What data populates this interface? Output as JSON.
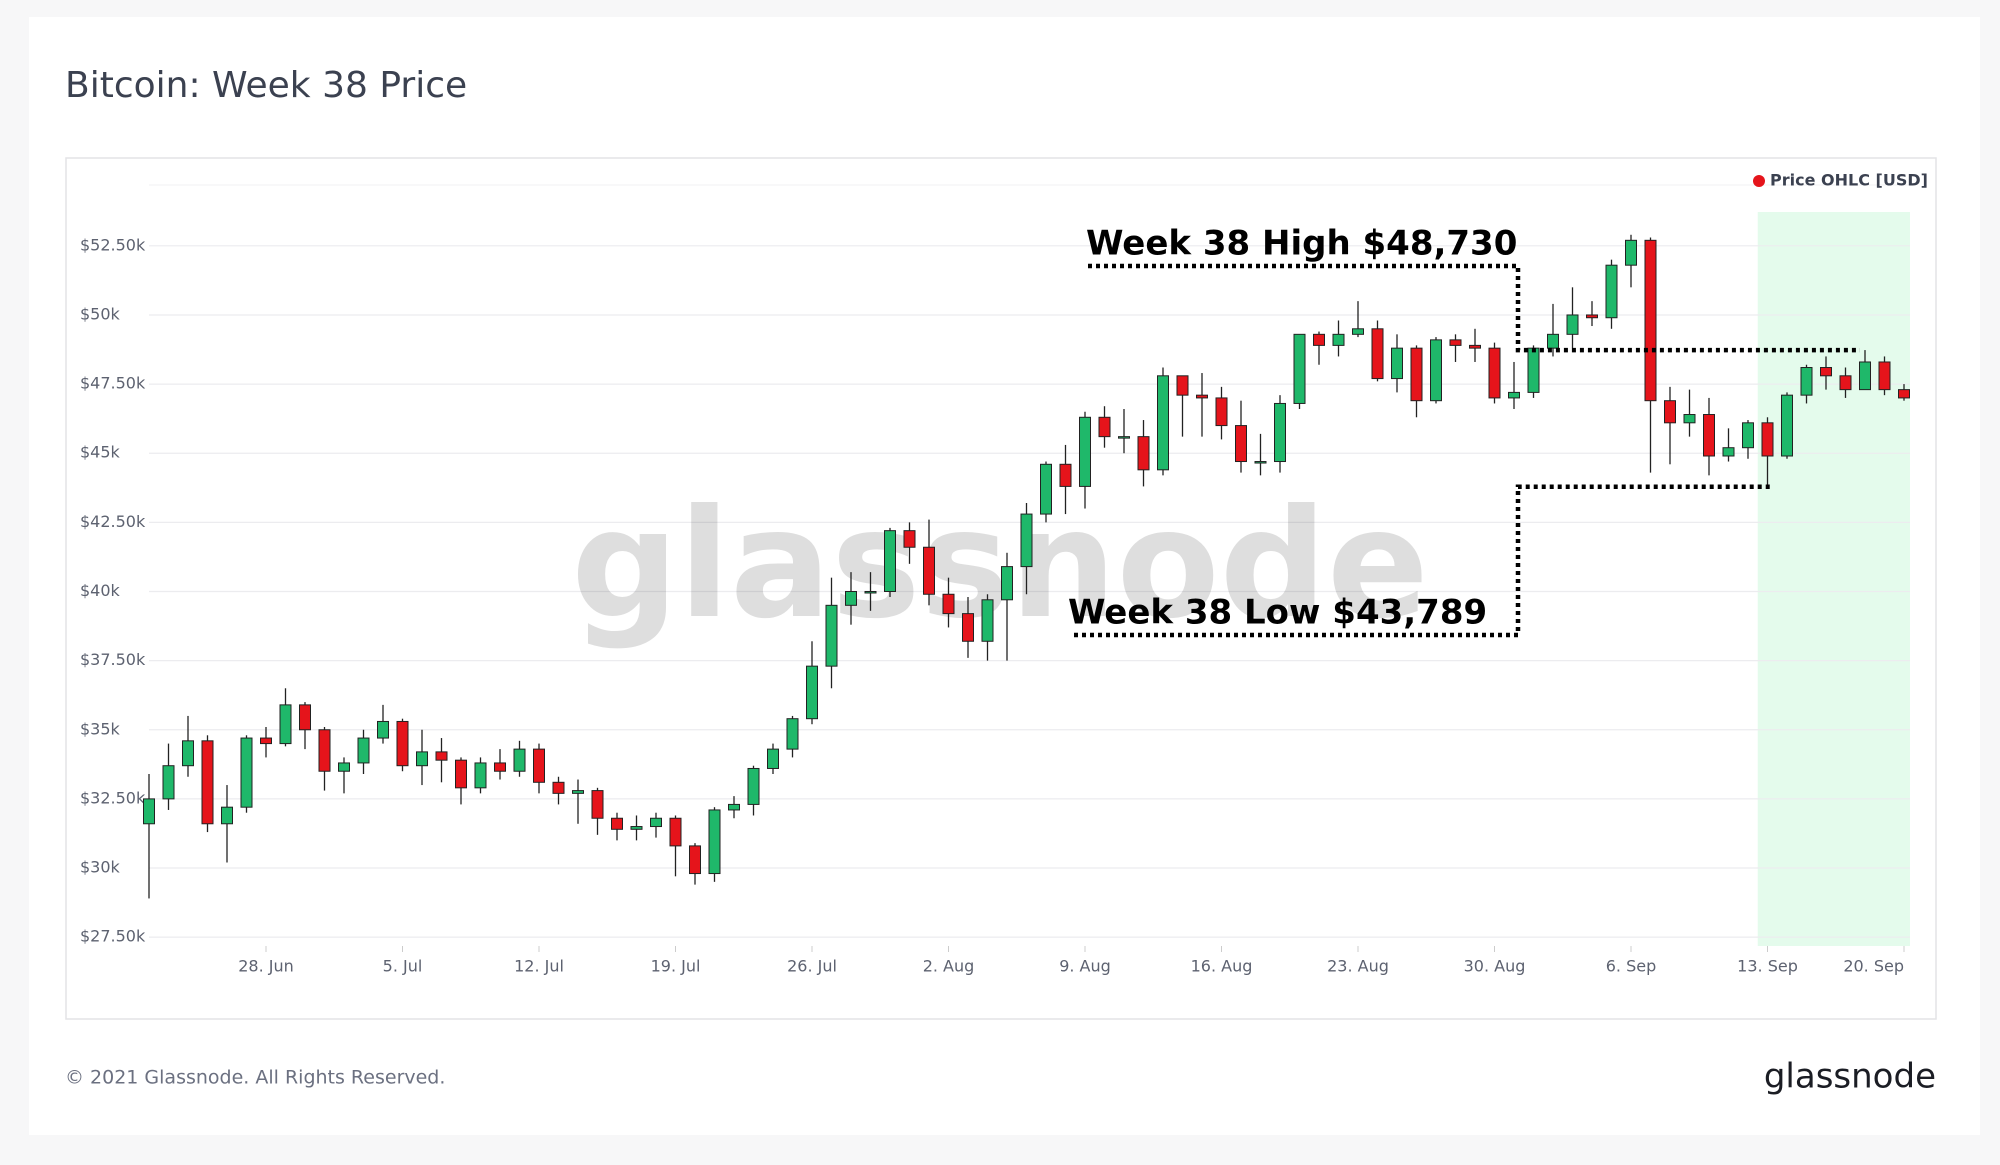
{
  "chart_data": {
    "type": "candlestick",
    "title": "Bitcoin: Week 38 Price",
    "legend": "Price OHLC [USD]",
    "legend_color": "#e5141b",
    "up_color": "#1fb86a",
    "down_color": "#e5141b",
    "watermark": "glassnode",
    "footer": "© 2021 Glassnode. All Rights Reserved.",
    "brand": "glassnode",
    "grid": true,
    "highlight": {
      "from": "09-13",
      "to": "09-20",
      "color": "#e4fbec"
    },
    "annotations": [
      {
        "text": "Week 38 High $48,730",
        "value": 48730
      },
      {
        "text": "Week 38 Low $43,789",
        "value": 43789
      }
    ],
    "x": [
      "06-22",
      "06-23",
      "06-24",
      "06-25",
      "06-26",
      "06-27",
      "06-28",
      "06-29",
      "06-30",
      "07-01",
      "07-02",
      "07-03",
      "07-04",
      "07-05",
      "07-06",
      "07-07",
      "07-08",
      "07-09",
      "07-10",
      "07-11",
      "07-12",
      "07-13",
      "07-14",
      "07-15",
      "07-16",
      "07-17",
      "07-18",
      "07-19",
      "07-20",
      "07-21",
      "07-22",
      "07-23",
      "07-24",
      "07-25",
      "07-26",
      "07-27",
      "07-28",
      "07-29",
      "07-30",
      "07-31",
      "08-01",
      "08-02",
      "08-03",
      "08-04",
      "08-05",
      "08-06",
      "08-07",
      "08-08",
      "08-09",
      "08-10",
      "08-11",
      "08-12",
      "08-13",
      "08-14",
      "08-15",
      "08-16",
      "08-17",
      "08-18",
      "08-19",
      "08-20",
      "08-21",
      "08-22",
      "08-23",
      "08-24",
      "08-25",
      "08-26",
      "08-27",
      "08-28",
      "08-29",
      "08-30",
      "08-31",
      "09-01",
      "09-02",
      "09-03",
      "09-04",
      "09-05",
      "09-06",
      "09-07",
      "09-08",
      "09-09",
      "09-10",
      "09-11",
      "09-12",
      "09-13",
      "09-14",
      "09-15",
      "09-16",
      "09-17",
      "09-18",
      "09-19",
      "09-20"
    ],
    "open": [
      31600,
      32500,
      33700,
      34600,
      31600,
      32200,
      34700,
      34500,
      35900,
      35000,
      33500,
      33800,
      34700,
      35300,
      33700,
      34200,
      33900,
      32900,
      33800,
      33500,
      34300,
      33100,
      32700,
      32800,
      31800,
      31400,
      31500,
      31800,
      30800,
      29800,
      32100,
      32300,
      33600,
      34300,
      35400,
      37300,
      39500,
      40000,
      40000,
      42200,
      41600,
      39900,
      39200,
      38200,
      39700,
      40900,
      42800,
      44600,
      43800,
      46300,
      45600,
      45600,
      44400,
      47800,
      47100,
      47000,
      46000,
      44700,
      44700,
      46800,
      49300,
      48900,
      49300,
      49500,
      47700,
      48800,
      46900,
      49100,
      48900,
      48800,
      47000,
      47200,
      48800,
      49300,
      50000,
      49900,
      51800,
      52700,
      46900,
      46100,
      46400,
      44900,
      45200,
      46100,
      44900,
      47100,
      48100,
      47800,
      47300,
      48300,
      47300
    ],
    "high": [
      33400,
      34500,
      35500,
      34800,
      33000,
      34800,
      35100,
      36500,
      36000,
      35100,
      34000,
      35000,
      35900,
      35400,
      35000,
      34700,
      34000,
      34000,
      34300,
      34600,
      34500,
      33300,
      33200,
      32900,
      32000,
      31900,
      32000,
      31900,
      30900,
      32200,
      32600,
      33700,
      34500,
      35500,
      38200,
      40500,
      40700,
      40700,
      42300,
      42500,
      42600,
      40500,
      39800,
      39900,
      41400,
      43200,
      44700,
      45300,
      46500,
      46700,
      46600,
      46200,
      48100,
      47800,
      47900,
      47400,
      46900,
      45700,
      47100,
      49300,
      49400,
      49800,
      50500,
      49800,
      49300,
      48900,
      49200,
      49300,
      49500,
      49000,
      48300,
      48900,
      50400,
      51000,
      50500,
      52000,
      52900,
      52800,
      47400,
      47300,
      47000,
      45900,
      46200,
      46300,
      47200,
      48200,
      48500,
      48100,
      48730,
      48500,
      47500
    ],
    "low": [
      28900,
      32100,
      33300,
      31300,
      30200,
      32000,
      34000,
      34400,
      34300,
      32800,
      32700,
      33400,
      34500,
      33500,
      33000,
      33100,
      32300,
      32700,
      33200,
      33300,
      32700,
      32300,
      31600,
      31200,
      31000,
      31000,
      31100,
      29700,
      29400,
      29500,
      31800,
      31900,
      33400,
      34000,
      35200,
      36500,
      38800,
      39300,
      39800,
      41000,
      39500,
      38700,
      37600,
      37500,
      37500,
      39900,
      42500,
      42800,
      43000,
      45200,
      45000,
      43800,
      44200,
      45600,
      45600,
      45500,
      44300,
      44200,
      44300,
      46600,
      48200,
      48500,
      49200,
      47600,
      47200,
      46300,
      46800,
      48300,
      48300,
      46800,
      46600,
      47000,
      48500,
      48800,
      49600,
      49500,
      51000,
      44300,
      44600,
      45600,
      44200,
      44700,
      44800,
      43789,
      44800,
      46800,
      47300,
      47000,
      47300,
      47100,
      46900
    ],
    "close": [
      32500,
      33700,
      34600,
      31600,
      32200,
      34700,
      34500,
      35900,
      35000,
      33500,
      33800,
      34700,
      35300,
      33700,
      34200,
      33900,
      32900,
      33800,
      33500,
      34300,
      33100,
      32700,
      32800,
      31800,
      31400,
      31500,
      31800,
      30800,
      29800,
      32100,
      32300,
      33600,
      34300,
      35400,
      37300,
      39500,
      40000,
      40000,
      42200,
      41600,
      39900,
      39200,
      38200,
      39700,
      40900,
      42800,
      44600,
      43800,
      46300,
      45600,
      45600,
      44400,
      47800,
      47100,
      47000,
      46000,
      44700,
      44700,
      46800,
      49300,
      48900,
      49300,
      49500,
      47700,
      48800,
      46900,
      49100,
      48900,
      48800,
      47000,
      47200,
      48800,
      49300,
      50000,
      49900,
      51800,
      52700,
      46900,
      46100,
      46400,
      44900,
      45200,
      46100,
      44900,
      47100,
      48100,
      47800,
      47300,
      48300,
      47300,
      47000
    ],
    "ylim": [
      27180,
      54700
    ],
    "yticks": [
      {
        "value": 27500,
        "label": "$27.50k"
      },
      {
        "value": 30000,
        "label": "$30k"
      },
      {
        "value": 32500,
        "label": "$32.50k"
      },
      {
        "value": 35000,
        "label": "$35k"
      },
      {
        "value": 37500,
        "label": "$37.50k"
      },
      {
        "value": 40000,
        "label": "$40k"
      },
      {
        "value": 42500,
        "label": "$42.50k"
      },
      {
        "value": 45000,
        "label": "$45k"
      },
      {
        "value": 47500,
        "label": "$47.50k"
      },
      {
        "value": 50000,
        "label": "$50k"
      },
      {
        "value": 52500,
        "label": "$52.50k"
      }
    ],
    "xticks": [
      {
        "value": "06-28",
        "label": "28. Jun"
      },
      {
        "value": "07-05",
        "label": "5. Jul"
      },
      {
        "value": "07-12",
        "label": "12. Jul"
      },
      {
        "value": "07-19",
        "label": "19. Jul"
      },
      {
        "value": "07-26",
        "label": "26. Jul"
      },
      {
        "value": "08-02",
        "label": "2. Aug"
      },
      {
        "value": "08-09",
        "label": "9. Aug"
      },
      {
        "value": "08-16",
        "label": "16. Aug"
      },
      {
        "value": "08-23",
        "label": "23. Aug"
      },
      {
        "value": "08-30",
        "label": "30. Aug"
      },
      {
        "value": "09-06",
        "label": "6. Sep"
      },
      {
        "value": "09-13",
        "label": "13. Sep"
      },
      {
        "value": "09-20",
        "label": "20. Sep"
      }
    ]
  }
}
